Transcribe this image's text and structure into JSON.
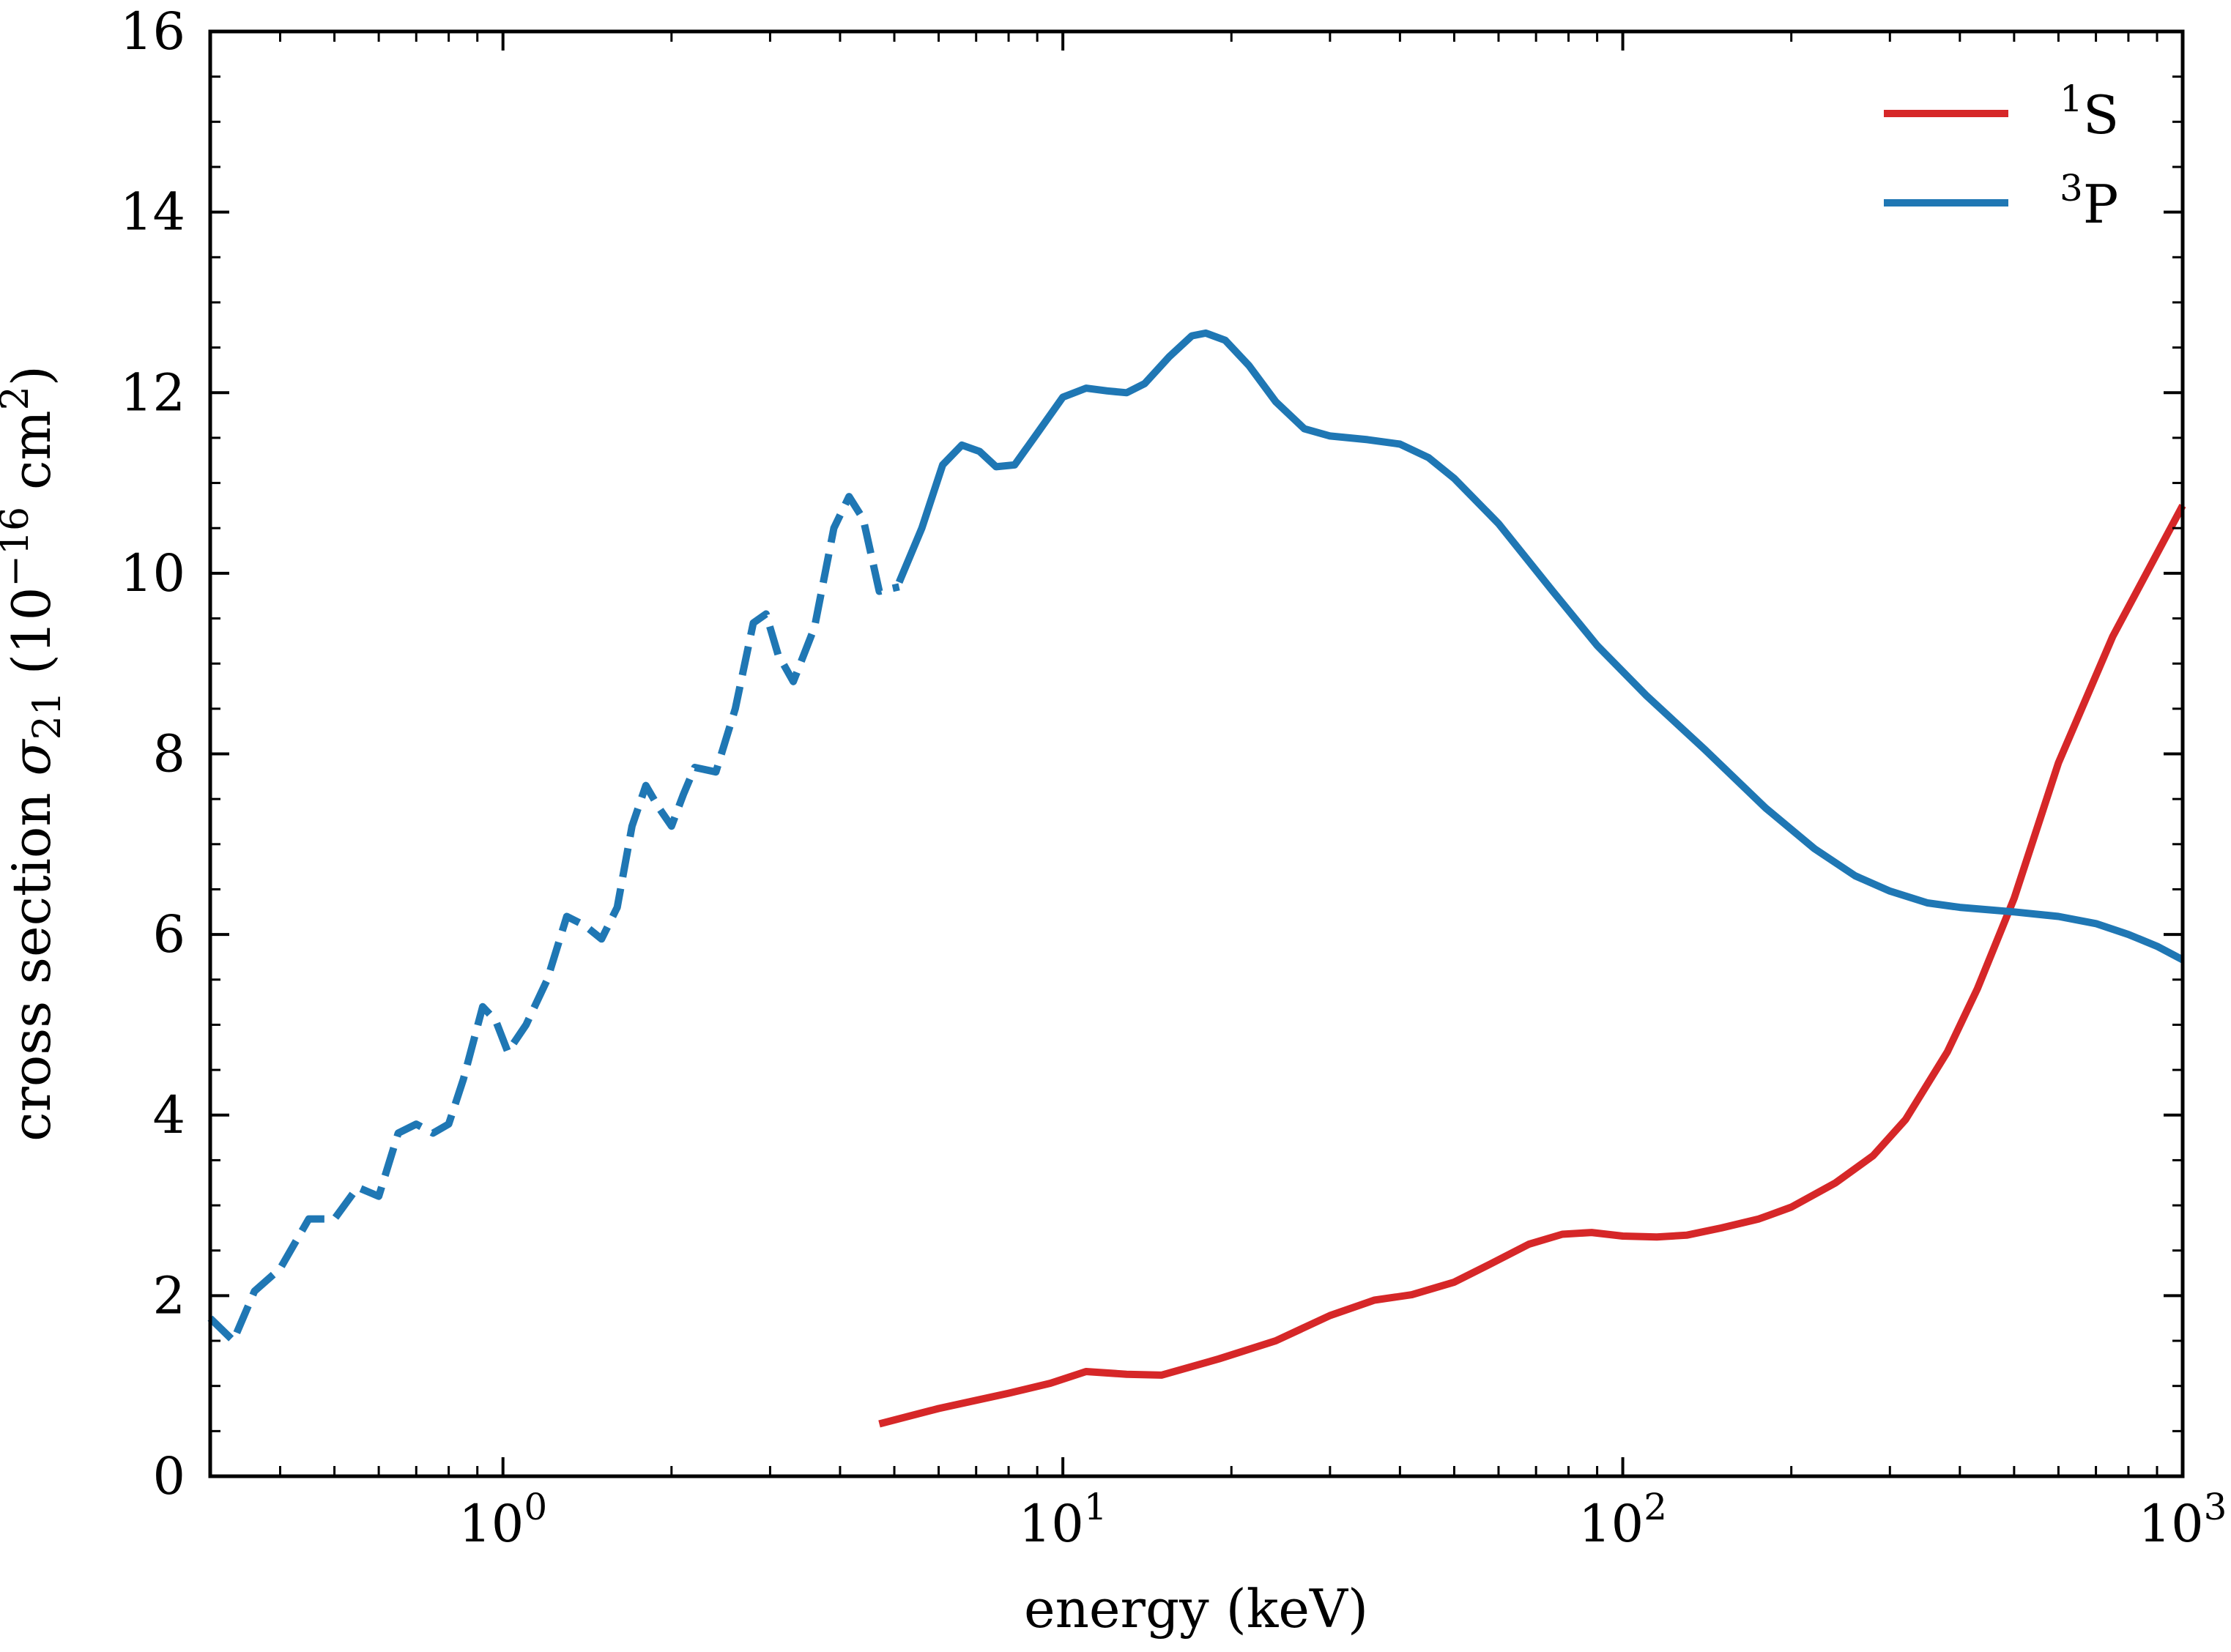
{
  "chart_data": {
    "type": "line",
    "xscale": "log",
    "xlim": [
      0.3,
      1000
    ],
    "ylim": [
      0,
      16
    ],
    "xlabel": "energy (keV)",
    "ylabel_parts": {
      "prefix": "cross section ",
      "symbol": "σ",
      "subscript": "21",
      "units_open": " (10",
      "units_exp": "−16",
      "units_mid": " cm",
      "units_exp2": "2",
      "units_close": ")"
    },
    "xticks": [
      {
        "value": 1,
        "base": "10",
        "exp": "0"
      },
      {
        "value": 10,
        "base": "10",
        "exp": "1"
      },
      {
        "value": 100,
        "base": "10",
        "exp": "2"
      },
      {
        "value": 1000,
        "base": "10",
        "exp": "3"
      }
    ],
    "yticks": [
      0,
      2,
      4,
      6,
      8,
      10,
      12,
      14,
      16
    ],
    "grid": false,
    "legend_position": "top-right",
    "series": [
      {
        "key": "s1",
        "name_sup": "1",
        "name_main": "S",
        "color": "#d62728",
        "style": "solid",
        "x": [
          4.7,
          6,
          8,
          9.5,
          11,
          13,
          15,
          19,
          24,
          30,
          36,
          42,
          50,
          58,
          68,
          78,
          88,
          100,
          115,
          130,
          150,
          175,
          200,
          240,
          280,
          320,
          380,
          430,
          500,
          600,
          750,
          1000
        ],
        "y": [
          0.58,
          0.75,
          0.92,
          1.03,
          1.16,
          1.13,
          1.12,
          1.3,
          1.5,
          1.78,
          1.95,
          2.01,
          2.15,
          2.35,
          2.57,
          2.68,
          2.7,
          2.66,
          2.65,
          2.67,
          2.75,
          2.85,
          2.98,
          3.25,
          3.55,
          3.95,
          4.7,
          5.4,
          6.4,
          7.9,
          9.3,
          10.75
        ]
      },
      {
        "key": "p3_dashed",
        "name_sup": "3",
        "name_main": "P",
        "color": "#1f77b4",
        "style": "dashed",
        "show_in_legend": false,
        "x": [
          0.3,
          0.33,
          0.36,
          0.4,
          0.45,
          0.5,
          0.55,
          0.6,
          0.65,
          0.7,
          0.75,
          0.8,
          0.85,
          0.92,
          0.97,
          1.02,
          1.1,
          1.2,
          1.3,
          1.4,
          1.5,
          1.6,
          1.7,
          1.8,
          1.9,
          2.0,
          2.1,
          2.2,
          2.4,
          2.6,
          2.8,
          2.95,
          3.1,
          3.3,
          3.6,
          3.9,
          4.15,
          4.4,
          4.7,
          5.1
        ],
        "y": [
          1.75,
          1.5,
          2.05,
          2.3,
          2.85,
          2.85,
          3.2,
          3.1,
          3.8,
          3.9,
          3.8,
          3.9,
          4.4,
          5.2,
          5.05,
          4.7,
          5.0,
          5.5,
          6.2,
          6.1,
          5.95,
          6.3,
          7.2,
          7.65,
          7.4,
          7.2,
          7.55,
          7.85,
          7.8,
          8.5,
          9.45,
          9.55,
          9.1,
          8.8,
          9.4,
          10.5,
          10.85,
          10.6,
          9.8,
          9.85
        ]
      },
      {
        "key": "p3",
        "name_sup": "3",
        "name_main": "P",
        "color": "#1f77b4",
        "style": "solid",
        "x": [
          5.1,
          5.6,
          6.1,
          6.6,
          7.1,
          7.6,
          8.2,
          9.0,
          10.0,
          11.0,
          12.0,
          13.0,
          14.0,
          15.5,
          17.0,
          18.0,
          19.5,
          21.5,
          24.0,
          27.0,
          30.0,
          35.0,
          40.0,
          45.0,
          50.0,
          60.0,
          75.0,
          90.0,
          110.0,
          140.0,
          180.0,
          220.0,
          260.0,
          300.0,
          350.0,
          400.0,
          500.0,
          600.0,
          700.0,
          800.0,
          900.0,
          1000.0
        ],
        "y": [
          9.9,
          10.5,
          11.2,
          11.42,
          11.35,
          11.18,
          11.2,
          11.55,
          11.95,
          12.05,
          12.02,
          12.0,
          12.1,
          12.4,
          12.63,
          12.66,
          12.58,
          12.3,
          11.9,
          11.6,
          11.52,
          11.48,
          11.43,
          11.28,
          11.05,
          10.55,
          9.8,
          9.2,
          8.65,
          8.05,
          7.4,
          6.95,
          6.65,
          6.48,
          6.35,
          6.3,
          6.25,
          6.2,
          6.12,
          6.0,
          5.87,
          5.72
        ]
      }
    ]
  }
}
